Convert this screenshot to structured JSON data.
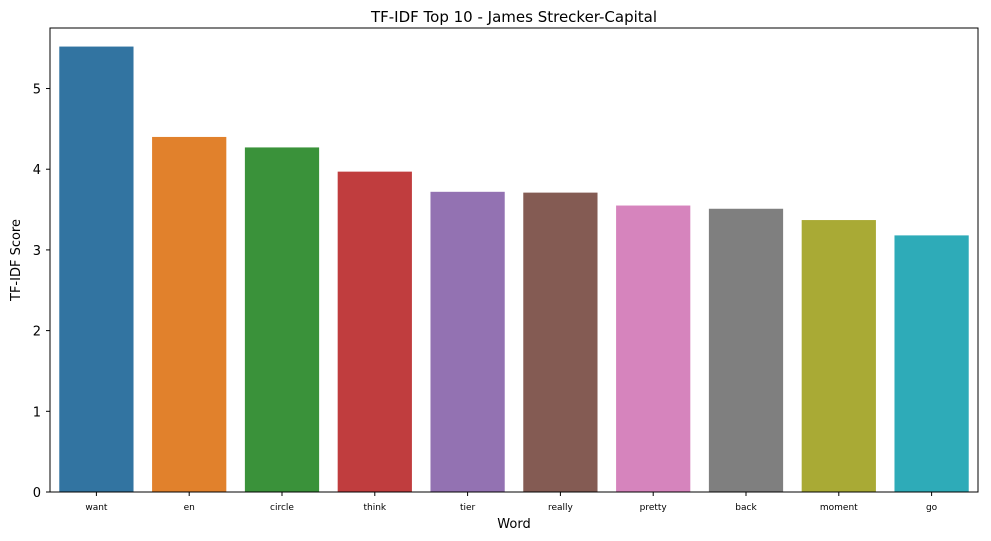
{
  "chart_data": {
    "type": "bar",
    "title": "TF-IDF Top 10 - James Strecker-Capital",
    "xlabel": "Word",
    "ylabel": "TF-IDF Score",
    "categories": [
      "want",
      "en",
      "circle",
      "think",
      "tier",
      "really",
      "pretty",
      "back",
      "moment",
      "go"
    ],
    "values": [
      5.52,
      4.4,
      4.27,
      3.97,
      3.72,
      3.71,
      3.55,
      3.51,
      3.37,
      3.18
    ],
    "colors": [
      "#3274a1",
      "#e1812c",
      "#3a923a",
      "#c03d3e",
      "#9372b2",
      "#845b53",
      "#d684bd",
      "#7f7f7f",
      "#a9aa35",
      "#2eabb8"
    ],
    "ylim": [
      0,
      5.75
    ],
    "yticks": [
      "0",
      "1",
      "2",
      "3",
      "4",
      "5"
    ],
    "grid": false,
    "legend": "none"
  }
}
